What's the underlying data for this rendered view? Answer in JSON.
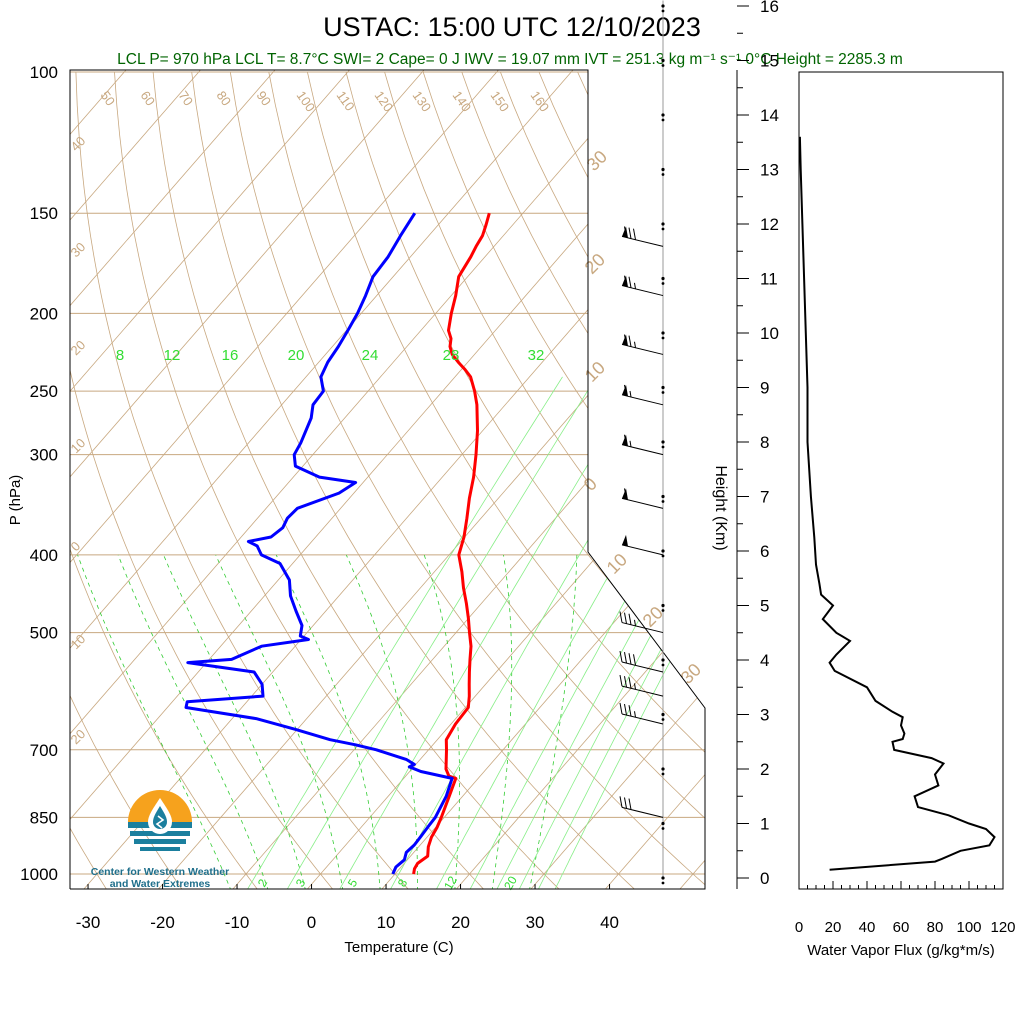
{
  "title": "USTAC: 15:00 UTC 12/10/2023",
  "info_line": "LCL P= 970 hPa  LCL T= 8.7°C  SWI= 2  Cape= 0 J  IWV = 19.07 mm  IVT = 251.3 kg m⁻¹ s⁻¹  0°C Height = 2285.3 m",
  "logo": {
    "line1": "Center for Western Weather",
    "line2": "and Water Extremes",
    "icon": "water-drop-icon"
  },
  "colors": {
    "temperature": "#ff0000",
    "dewpoint": "#0000ff",
    "dry_adiabat": "#c8a880",
    "isotherm": "#c8a880",
    "mixing_ratio": "#00dd00",
    "info_text": "#006400",
    "flux": "#000000"
  },
  "chart_data": [
    {
      "type": "line",
      "subtype": "skew-t log-p",
      "xlabel": "Temperature (C)",
      "ylabel": "P (hPa)",
      "xlim": [
        -35,
        48
      ],
      "ylim": [
        1030,
        100
      ],
      "y_scale": "log",
      "x_ticks": [
        -30,
        -20,
        -10,
        0,
        10,
        20,
        30,
        40
      ],
      "y_ticks": [
        100,
        150,
        200,
        250,
        300,
        400,
        500,
        700,
        850,
        1000
      ],
      "isotherm_labels": [
        "-40",
        "-30",
        "-20",
        "-10",
        "0",
        "10",
        "20",
        "30"
      ],
      "dry_adiabat_labels": [
        "50",
        "60",
        "70",
        "80",
        "90",
        "100",
        "110",
        "120",
        "130",
        "140",
        "150",
        "160"
      ],
      "theta_labels_left": [
        "40",
        "30",
        "20",
        "10",
        "0",
        "10",
        "20"
      ],
      "theta_labels_right": [
        "30",
        "20",
        "10",
        "0",
        "10",
        "20",
        "30"
      ],
      "mixing_ratio_labels_top": [
        "8",
        "12",
        "16",
        "20",
        "24",
        "28",
        "32"
      ],
      "mixing_ratio_labels_bottom": [
        "2",
        "3",
        "5",
        "8",
        "12",
        "20"
      ],
      "series": [
        {
          "name": "Temperature",
          "pressure": [
            1000,
            985,
            970,
            950,
            925,
            900,
            875,
            850,
            800,
            760,
            755,
            740,
            700,
            680,
            650,
            620,
            600,
            580,
            560,
            540,
            520,
            500,
            480,
            460,
            440,
            420,
            400,
            380,
            360,
            340,
            320,
            300,
            280,
            260,
            250,
            240,
            235,
            230,
            225,
            220,
            215,
            210,
            200,
            190,
            180,
            170,
            165,
            160,
            155,
            150
          ],
          "temp": [
            12.5,
            12.0,
            11.8,
            12.3,
            11.3,
            10.6,
            10.2,
            9.6,
            8.2,
            7.0,
            5.8,
            4.6,
            2.4,
            1.2,
            0.6,
            0.4,
            -0.8,
            -2.2,
            -3.6,
            -5.0,
            -6.4,
            -8.2,
            -10.0,
            -12.0,
            -14.2,
            -16.3,
            -18.7,
            -20.1,
            -21.9,
            -23.9,
            -25.8,
            -28.1,
            -30.7,
            -33.8,
            -35.7,
            -37.9,
            -39.5,
            -41.3,
            -43.0,
            -44.2,
            -45.0,
            -46.3,
            -47.9,
            -49.4,
            -51.2,
            -51.9,
            -52.4,
            -52.8,
            -53.6,
            -54.5
          ]
        },
        {
          "name": "Dewpoint",
          "pressure": [
            1000,
            980,
            960,
            940,
            920,
            900,
            870,
            850,
            800,
            760,
            745,
            735,
            730,
            720,
            700,
            690,
            680,
            660,
            640,
            620,
            610,
            600,
            580,
            560,
            545,
            540,
            520,
            510,
            505,
            490,
            470,
            450,
            430,
            410,
            400,
            390,
            385,
            380,
            370,
            360,
            350,
            335,
            325,
            320,
            310,
            300,
            290,
            270,
            260,
            250,
            240,
            230,
            220,
            210,
            200,
            190,
            180,
            170,
            160,
            150
          ],
          "dewpt": [
            9.7,
            9.3,
            9.6,
            9.0,
            9.2,
            9.1,
            8.9,
            8.8,
            7.8,
            6.5,
            1.5,
            -0.6,
            -0.2,
            -1.8,
            -7.0,
            -10.4,
            -14.4,
            -20.3,
            -26.8,
            -37.5,
            -38.0,
            -28.5,
            -30.0,
            -32.5,
            -42.5,
            -37.0,
            -34.5,
            -29.0,
            -30.5,
            -31.5,
            -34.0,
            -36.5,
            -38.5,
            -41.7,
            -45.2,
            -46.8,
            -48.5,
            -46.0,
            -45.5,
            -46.0,
            -45.8,
            -42.0,
            -41.0,
            -46.5,
            -51.0,
            -52.5,
            -53.0,
            -54.5,
            -55.8,
            -56.0,
            -58.0,
            -58.8,
            -59.2,
            -59.8,
            -60.5,
            -61.5,
            -62.7,
            -63.0,
            -63.8,
            -64.5
          ]
        }
      ]
    },
    {
      "type": "barbs",
      "name": "Wind barbs",
      "height_ticks": [
        0,
        1,
        2,
        3,
        4,
        5,
        6,
        7,
        8,
        9,
        10,
        11,
        12,
        13,
        14,
        15,
        16
      ],
      "pressure": [
        850,
        650,
        600,
        560,
        500,
        400,
        350,
        300,
        260,
        225,
        190,
        165
      ],
      "speed_kt": [
        30,
        35,
        35,
        40,
        35,
        50,
        60,
        65,
        65,
        75,
        75,
        80
      ],
      "direction_deg": [
        260,
        260,
        260,
        260,
        265,
        265,
        270,
        270,
        270,
        275,
        280,
        280
      ]
    },
    {
      "type": "line",
      "name": "Water Vapor Flux",
      "xlabel": "Water Vapor Flux (g/kg*m/s)",
      "ylabel": "Height (Km)",
      "xlim": [
        0,
        120
      ],
      "ylim": [
        -0.3,
        16.5
      ],
      "x_ticks": [
        0,
        20,
        40,
        60,
        80,
        100,
        120
      ],
      "y_ticks": [
        0,
        1,
        2,
        3,
        4,
        5,
        6,
        7,
        8,
        9,
        10,
        11,
        12,
        13,
        14,
        15,
        16
      ],
      "height_km": [
        0.15,
        0.3,
        0.35,
        0.5,
        0.6,
        0.75,
        0.9,
        1.0,
        1.15,
        1.3,
        1.5,
        1.7,
        1.9,
        2.1,
        2.2,
        2.35,
        2.5,
        2.55,
        2.65,
        2.8,
        2.95,
        3.05,
        3.25,
        3.5,
        3.8,
        3.95,
        4.1,
        4.35,
        4.5,
        4.75,
        5.0,
        5.2,
        5.4,
        5.75,
        6.25,
        7.0,
        8.0,
        9.0,
        10.0,
        11.0,
        12.0,
        13.0,
        13.6
      ],
      "flux": [
        18,
        80,
        84,
        95,
        112,
        115,
        110,
        100,
        88,
        70,
        68,
        82,
        80,
        85,
        78,
        56,
        55,
        61,
        62,
        60,
        61,
        55,
        45,
        40,
        21,
        18,
        22,
        30,
        22,
        14,
        20,
        13,
        12,
        10,
        9,
        7,
        5,
        5,
        4,
        3,
        2,
        1,
        0.5
      ]
    }
  ]
}
